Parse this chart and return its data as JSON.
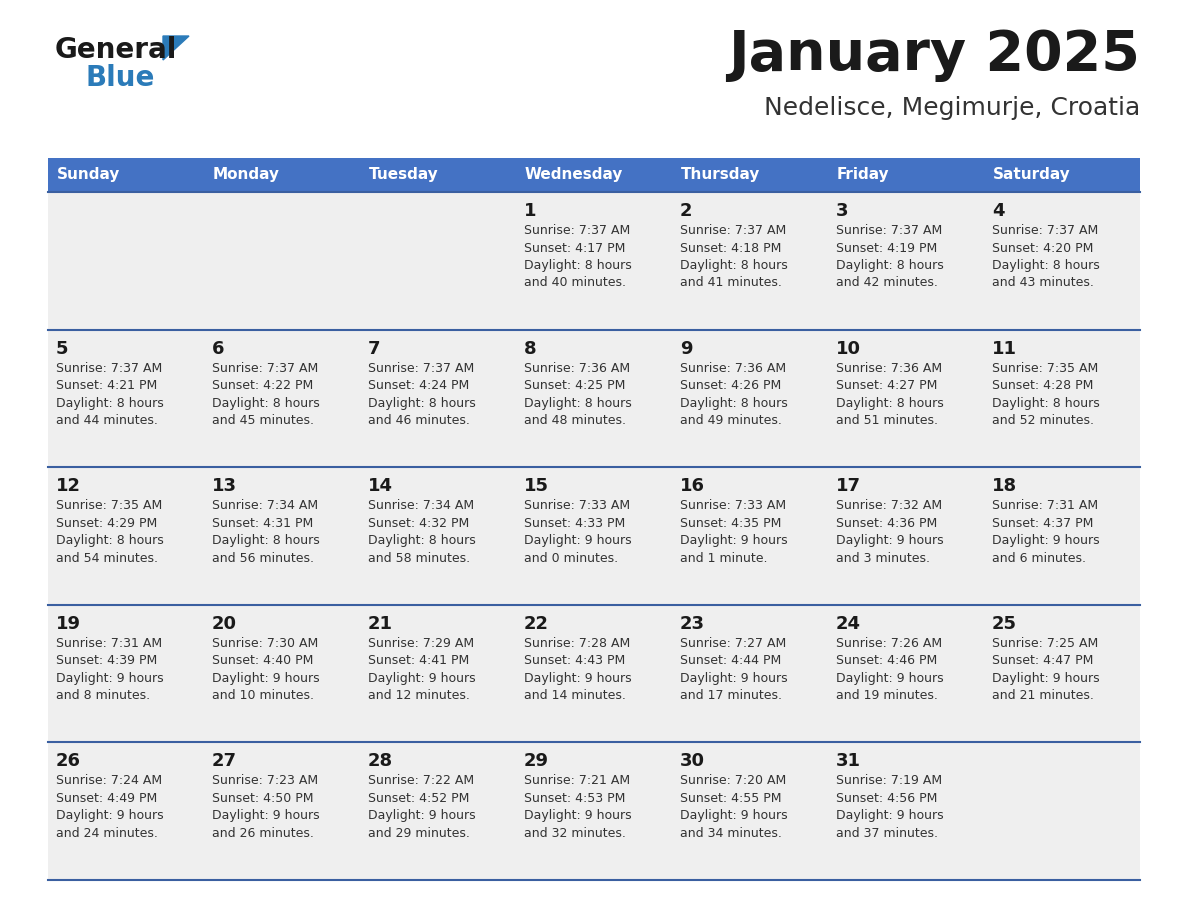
{
  "title": "January 2025",
  "subtitle": "Nedelisce, Megimurje, Croatia",
  "header_bg": "#4472C4",
  "header_text": "#FFFFFF",
  "cell_bg": "#EFEFEF",
  "separator_color": "#3A5FA0",
  "day_names": [
    "Sunday",
    "Monday",
    "Tuesday",
    "Wednesday",
    "Thursday",
    "Friday",
    "Saturday"
  ],
  "logo_general_color": "#1a1a1a",
  "logo_blue_color": "#2B7BB9",
  "logo_triangle_color": "#2B7BB9",
  "title_color": "#1a1a1a",
  "subtitle_color": "#333333",
  "day_num_color": "#1a1a1a",
  "info_color": "#333333",
  "days": [
    {
      "day": 1,
      "col": 3,
      "row": 0,
      "sunrise": "7:37 AM",
      "sunset": "4:17 PM",
      "dh": 8,
      "dm": 40
    },
    {
      "day": 2,
      "col": 4,
      "row": 0,
      "sunrise": "7:37 AM",
      "sunset": "4:18 PM",
      "dh": 8,
      "dm": 41
    },
    {
      "day": 3,
      "col": 5,
      "row": 0,
      "sunrise": "7:37 AM",
      "sunset": "4:19 PM",
      "dh": 8,
      "dm": 42
    },
    {
      "day": 4,
      "col": 6,
      "row": 0,
      "sunrise": "7:37 AM",
      "sunset": "4:20 PM",
      "dh": 8,
      "dm": 43
    },
    {
      "day": 5,
      "col": 0,
      "row": 1,
      "sunrise": "7:37 AM",
      "sunset": "4:21 PM",
      "dh": 8,
      "dm": 44
    },
    {
      "day": 6,
      "col": 1,
      "row": 1,
      "sunrise": "7:37 AM",
      "sunset": "4:22 PM",
      "dh": 8,
      "dm": 45
    },
    {
      "day": 7,
      "col": 2,
      "row": 1,
      "sunrise": "7:37 AM",
      "sunset": "4:24 PM",
      "dh": 8,
      "dm": 46
    },
    {
      "day": 8,
      "col": 3,
      "row": 1,
      "sunrise": "7:36 AM",
      "sunset": "4:25 PM",
      "dh": 8,
      "dm": 48
    },
    {
      "day": 9,
      "col": 4,
      "row": 1,
      "sunrise": "7:36 AM",
      "sunset": "4:26 PM",
      "dh": 8,
      "dm": 49
    },
    {
      "day": 10,
      "col": 5,
      "row": 1,
      "sunrise": "7:36 AM",
      "sunset": "4:27 PM",
      "dh": 8,
      "dm": 51
    },
    {
      "day": 11,
      "col": 6,
      "row": 1,
      "sunrise": "7:35 AM",
      "sunset": "4:28 PM",
      "dh": 8,
      "dm": 52
    },
    {
      "day": 12,
      "col": 0,
      "row": 2,
      "sunrise": "7:35 AM",
      "sunset": "4:29 PM",
      "dh": 8,
      "dm": 54
    },
    {
      "day": 13,
      "col": 1,
      "row": 2,
      "sunrise": "7:34 AM",
      "sunset": "4:31 PM",
      "dh": 8,
      "dm": 56
    },
    {
      "day": 14,
      "col": 2,
      "row": 2,
      "sunrise": "7:34 AM",
      "sunset": "4:32 PM",
      "dh": 8,
      "dm": 58
    },
    {
      "day": 15,
      "col": 3,
      "row": 2,
      "sunrise": "7:33 AM",
      "sunset": "4:33 PM",
      "dh": 9,
      "dm": 0
    },
    {
      "day": 16,
      "col": 4,
      "row": 2,
      "sunrise": "7:33 AM",
      "sunset": "4:35 PM",
      "dh": 9,
      "dm": 1
    },
    {
      "day": 17,
      "col": 5,
      "row": 2,
      "sunrise": "7:32 AM",
      "sunset": "4:36 PM",
      "dh": 9,
      "dm": 3
    },
    {
      "day": 18,
      "col": 6,
      "row": 2,
      "sunrise": "7:31 AM",
      "sunset": "4:37 PM",
      "dh": 9,
      "dm": 6
    },
    {
      "day": 19,
      "col": 0,
      "row": 3,
      "sunrise": "7:31 AM",
      "sunset": "4:39 PM",
      "dh": 9,
      "dm": 8
    },
    {
      "day": 20,
      "col": 1,
      "row": 3,
      "sunrise": "7:30 AM",
      "sunset": "4:40 PM",
      "dh": 9,
      "dm": 10
    },
    {
      "day": 21,
      "col": 2,
      "row": 3,
      "sunrise": "7:29 AM",
      "sunset": "4:41 PM",
      "dh": 9,
      "dm": 12
    },
    {
      "day": 22,
      "col": 3,
      "row": 3,
      "sunrise": "7:28 AM",
      "sunset": "4:43 PM",
      "dh": 9,
      "dm": 14
    },
    {
      "day": 23,
      "col": 4,
      "row": 3,
      "sunrise": "7:27 AM",
      "sunset": "4:44 PM",
      "dh": 9,
      "dm": 17
    },
    {
      "day": 24,
      "col": 5,
      "row": 3,
      "sunrise": "7:26 AM",
      "sunset": "4:46 PM",
      "dh": 9,
      "dm": 19
    },
    {
      "day": 25,
      "col": 6,
      "row": 3,
      "sunrise": "7:25 AM",
      "sunset": "4:47 PM",
      "dh": 9,
      "dm": 21
    },
    {
      "day": 26,
      "col": 0,
      "row": 4,
      "sunrise": "7:24 AM",
      "sunset": "4:49 PM",
      "dh": 9,
      "dm": 24
    },
    {
      "day": 27,
      "col": 1,
      "row": 4,
      "sunrise": "7:23 AM",
      "sunset": "4:50 PM",
      "dh": 9,
      "dm": 26
    },
    {
      "day": 28,
      "col": 2,
      "row": 4,
      "sunrise": "7:22 AM",
      "sunset": "4:52 PM",
      "dh": 9,
      "dm": 29
    },
    {
      "day": 29,
      "col": 3,
      "row": 4,
      "sunrise": "7:21 AM",
      "sunset": "4:53 PM",
      "dh": 9,
      "dm": 32
    },
    {
      "day": 30,
      "col": 4,
      "row": 4,
      "sunrise": "7:20 AM",
      "sunset": "4:55 PM",
      "dh": 9,
      "dm": 34
    },
    {
      "day": 31,
      "col": 5,
      "row": 4,
      "sunrise": "7:19 AM",
      "sunset": "4:56 PM",
      "dh": 9,
      "dm": 37
    }
  ]
}
